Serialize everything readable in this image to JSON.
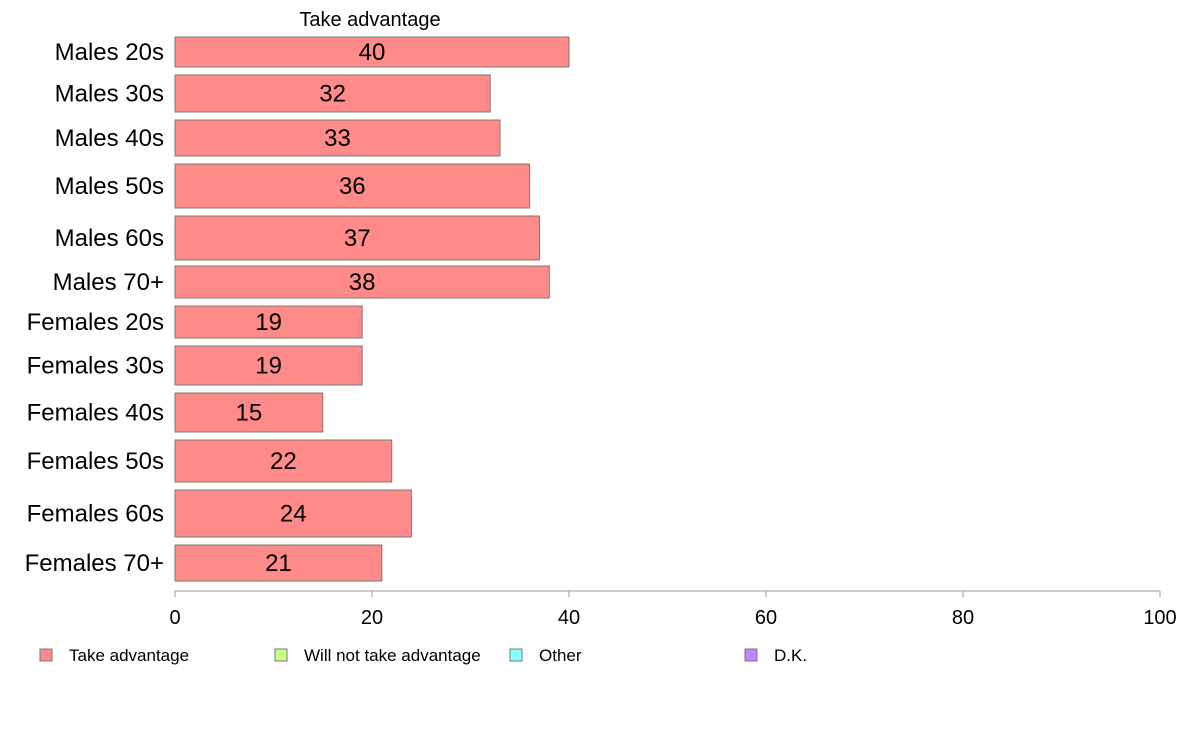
{
  "chart_data": {
    "type": "bar",
    "orientation": "horizontal",
    "title": "Take advantage",
    "categories": [
      "Males 20s",
      "Males 30s",
      "Males 40s",
      "Males 50s",
      "Males 60s",
      "Males 70+",
      "Females 20s",
      "Females 30s",
      "Females 40s",
      "Females 50s",
      "Females 60s",
      "Females 70+"
    ],
    "series": [
      {
        "name": "Take advantage",
        "values": [
          40,
          32,
          33,
          36,
          37,
          38,
          19,
          19,
          15,
          22,
          24,
          21
        ]
      }
    ],
    "data_labels": [
      "40",
      "32",
      "33",
      "36",
      "37",
      "38",
      "19",
      "19",
      "15",
      "22",
      "24",
      "21"
    ],
    "xlim": [
      0,
      100
    ],
    "xticks": [
      0,
      20,
      40,
      60,
      80,
      100
    ],
    "grid": false,
    "legend_position": "bottom",
    "legend": [
      {
        "label": "Take advantage",
        "color": "#ff8a8a"
      },
      {
        "label": "Will not take advantage",
        "color": "#ccff88"
      },
      {
        "label": "Other",
        "color": "#88ffff"
      },
      {
        "label": "D.K.",
        "color": "#bb88ff"
      }
    ],
    "bar_color": "#ff8a8a"
  }
}
